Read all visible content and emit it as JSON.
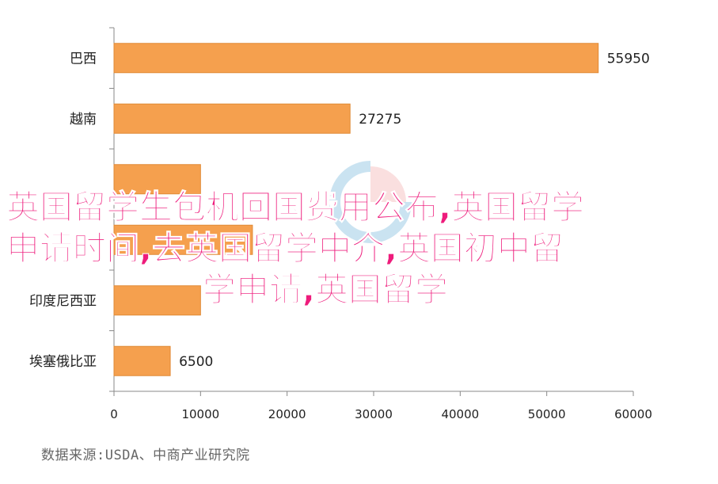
{
  "chart_data": {
    "type": "bar",
    "orientation": "horizontal",
    "categories": [
      "巴西",
      "越南",
      "",
      "",
      "印度尼西亚",
      "埃塞俄比亚"
    ],
    "values": [
      55950,
      27275,
      10000,
      16000,
      10000,
      6500
    ],
    "data_labels": [
      "55950",
      "27275",
      "",
      "",
      "",
      "6500"
    ],
    "xticks": [
      "0",
      "10000",
      "20000",
      "30000",
      "40000",
      "50000",
      "60000"
    ],
    "xlim": [
      0,
      60000
    ],
    "bar_color": "#f5a04e",
    "bar_edge_color": "#e08a36",
    "grid": false
  },
  "overlay": {
    "line1": "英国留学生包机回国费用公布,英国留学",
    "line2": "申请时间,去英国留学中介,英国初中留",
    "line3": "学申请,英国留学",
    "color": "#ee1c7c"
  },
  "source": "数据来源:USDA、中商产业研究院"
}
